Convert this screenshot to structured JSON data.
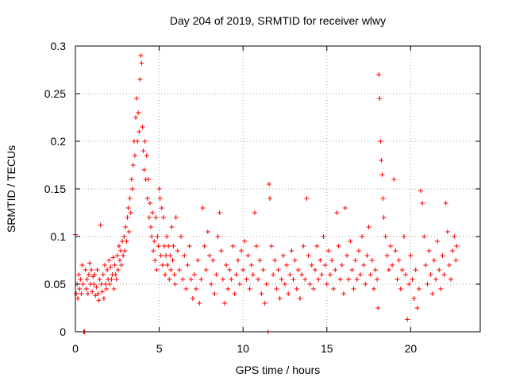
{
  "chart_data": {
    "type": "scatter",
    "title": "Day 204 of 2019, SRMTID for receiver wlwy",
    "xlabel": "GPS time / hours",
    "ylabel": "SRMTID / TECUs",
    "xlim": [
      0,
      24.15
    ],
    "ylim": [
      0,
      0.3
    ],
    "xticks": [
      0,
      5,
      10,
      15,
      20
    ],
    "xtick_labels": [
      "0",
      "5",
      "10",
      "15",
      "20"
    ],
    "yticks": [
      0,
      0.05,
      0.1,
      0.15,
      0.2,
      0.25,
      0.3
    ],
    "ytick_labels": [
      "0",
      "0.05",
      "0.1",
      "0.15",
      "0.2",
      "0.25",
      "0.3"
    ],
    "grid": true,
    "marker": "+",
    "color": "#ff0000",
    "series": [
      {
        "name": "SRMTID",
        "points": [
          [
            0.0,
            0.102
          ],
          [
            0.05,
            0.04
          ],
          [
            0.1,
            0.05
          ],
          [
            0.15,
            0.035
          ],
          [
            0.2,
            0.06
          ],
          [
            0.25,
            0.045
          ],
          [
            0.3,
            0.055
          ],
          [
            0.35,
            0.04
          ],
          [
            0.4,
            0.07
          ],
          [
            0.45,
            0.05
          ],
          [
            0.5,
            0.0
          ],
          [
            0.55,
            0.0
          ],
          [
            0.6,
            0.065
          ],
          [
            0.65,
            0.045
          ],
          [
            0.7,
            0.055
          ],
          [
            0.75,
            0.04
          ],
          [
            0.8,
            0.06
          ],
          [
            0.85,
            0.072
          ],
          [
            0.9,
            0.05
          ],
          [
            0.95,
            0.065
          ],
          [
            1.0,
            0.042
          ],
          [
            1.05,
            0.058
          ],
          [
            1.1,
            0.05
          ],
          [
            1.15,
            0.06
          ],
          [
            1.2,
            0.038
          ],
          [
            1.25,
            0.047
          ],
          [
            1.3,
            0.065
          ],
          [
            1.35,
            0.04
          ],
          [
            1.4,
            0.033
          ],
          [
            1.45,
            0.055
          ],
          [
            1.5,
            0.112
          ],
          [
            1.55,
            0.05
          ],
          [
            1.6,
            0.042
          ],
          [
            1.65,
            0.06
          ],
          [
            1.7,
            0.035
          ],
          [
            1.75,
            0.07
          ],
          [
            1.8,
            0.05
          ],
          [
            1.85,
            0.045
          ],
          [
            1.9,
            0.065
          ],
          [
            1.95,
            0.055
          ],
          [
            2.0,
            0.075
          ],
          [
            2.05,
            0.05
          ],
          [
            2.1,
            0.068
          ],
          [
            2.15,
            0.055
          ],
          [
            2.2,
            0.06
          ],
          [
            2.25,
            0.078
          ],
          [
            2.3,
            0.045
          ],
          [
            2.35,
            0.07
          ],
          [
            2.4,
            0.06
          ],
          [
            2.45,
            0.055
          ],
          [
            2.5,
            0.08
          ],
          [
            2.55,
            0.065
          ],
          [
            2.6,
            0.09
          ],
          [
            2.65,
            0.075
          ],
          [
            2.7,
            0.085
          ],
          [
            2.75,
            0.07
          ],
          [
            2.8,
            0.095
          ],
          [
            2.85,
            0.08
          ],
          [
            2.9,
            0.1
          ],
          [
            2.95,
            0.085
          ],
          [
            3.0,
            0.11
          ],
          [
            3.05,
            0.095
          ],
          [
            3.1,
            0.12
          ],
          [
            3.15,
            0.13
          ],
          [
            3.2,
            0.105
          ],
          [
            3.25,
            0.14
          ],
          [
            3.3,
            0.125
          ],
          [
            3.35,
            0.16
          ],
          [
            3.4,
            0.15
          ],
          [
            3.45,
            0.175
          ],
          [
            3.5,
            0.2
          ],
          [
            3.55,
            0.185
          ],
          [
            3.6,
            0.225
          ],
          [
            3.65,
            0.245
          ],
          [
            3.7,
            0.2
          ],
          [
            3.75,
            0.23
          ],
          [
            3.8,
            0.21
          ],
          [
            3.85,
            0.265
          ],
          [
            3.9,
            0.29
          ],
          [
            3.95,
            0.282
          ],
          [
            4.0,
            0.215
          ],
          [
            4.05,
            0.19
          ],
          [
            4.1,
            0.17
          ],
          [
            4.15,
            0.2
          ],
          [
            4.2,
            0.16
          ],
          [
            4.25,
            0.185
          ],
          [
            4.3,
            0.14
          ],
          [
            4.35,
            0.16
          ],
          [
            4.4,
            0.12
          ],
          [
            4.45,
            0.135
          ],
          [
            4.5,
            0.11
          ],
          [
            4.55,
            0.1
          ],
          [
            4.6,
            0.125
          ],
          [
            4.65,
            0.085
          ],
          [
            4.7,
            0.095
          ],
          [
            4.75,
            0.075
          ],
          [
            4.8,
            0.12
          ],
          [
            4.85,
            0.065
          ],
          [
            4.9,
            0.1
          ],
          [
            4.95,
            0.09
          ],
          [
            5.0,
            0.15
          ],
          [
            5.05,
            0.14
          ],
          [
            5.1,
            0.08
          ],
          [
            5.15,
            0.13
          ],
          [
            5.2,
            0.07
          ],
          [
            5.25,
            0.12
          ],
          [
            5.3,
            0.09
          ],
          [
            5.35,
            0.06
          ],
          [
            5.4,
            0.08
          ],
          [
            5.45,
            0.1
          ],
          [
            5.5,
            0.07
          ],
          [
            5.55,
            0.09
          ],
          [
            5.6,
            0.055
          ],
          [
            5.65,
            0.08
          ],
          [
            5.7,
            0.065
          ],
          [
            5.75,
            0.11
          ],
          [
            5.8,
            0.075
          ],
          [
            5.85,
            0.09
          ],
          [
            5.9,
            0.06
          ],
          [
            5.95,
            0.05
          ],
          [
            6.0,
            0.12
          ],
          [
            6.1,
            0.085
          ],
          [
            6.2,
            0.065
          ],
          [
            6.3,
            0.1
          ],
          [
            6.4,
            0.055
          ],
          [
            6.5,
            0.08
          ],
          [
            6.6,
            0.045
          ],
          [
            6.7,
            0.07
          ],
          [
            6.8,
            0.09
          ],
          [
            6.9,
            0.055
          ],
          [
            7.0,
            0.035
          ],
          [
            7.1,
            0.06
          ],
          [
            7.2,
            0.045
          ],
          [
            7.3,
            0.075
          ],
          [
            7.4,
            0.03
          ],
          [
            7.5,
            0.055
          ],
          [
            7.6,
            0.13
          ],
          [
            7.7,
            0.09
          ],
          [
            7.8,
            0.065
          ],
          [
            7.9,
            0.105
          ],
          [
            8.0,
            0.08
          ],
          [
            8.1,
            0.05
          ],
          [
            8.2,
            0.075
          ],
          [
            8.3,
            0.04
          ],
          [
            8.4,
            0.06
          ],
          [
            8.5,
            0.1
          ],
          [
            8.6,
            0.125
          ],
          [
            8.7,
            0.085
          ],
          [
            8.8,
            0.055
          ],
          [
            8.9,
            0.03
          ],
          [
            9.0,
            0.07
          ],
          [
            9.1,
            0.045
          ],
          [
            9.2,
            0.065
          ],
          [
            9.3,
            0.055
          ],
          [
            9.4,
            0.09
          ],
          [
            9.5,
            0.04
          ],
          [
            9.6,
            0.06
          ],
          [
            9.7,
            0.075
          ],
          [
            9.8,
            0.05
          ],
          [
            9.9,
            0.085
          ],
          [
            10.0,
            0.065
          ],
          [
            10.1,
            0.095
          ],
          [
            10.2,
            0.055
          ],
          [
            10.3,
            0.08
          ],
          [
            10.4,
            0.045
          ],
          [
            10.5,
            0.07
          ],
          [
            10.6,
            0.06
          ],
          [
            10.7,
            0.125
          ],
          [
            10.8,
            0.09
          ],
          [
            10.9,
            0.055
          ],
          [
            11.0,
            0.075
          ],
          [
            11.1,
            0.04
          ],
          [
            11.2,
            0.065
          ],
          [
            11.3,
            0.03
          ],
          [
            11.4,
            0.05
          ],
          [
            11.5,
            0.0
          ],
          [
            11.55,
            0.155
          ],
          [
            11.6,
            0.14
          ],
          [
            11.7,
            0.09
          ],
          [
            11.8,
            0.06
          ],
          [
            11.9,
            0.075
          ],
          [
            12.0,
            0.045
          ],
          [
            12.1,
            0.065
          ],
          [
            12.2,
            0.035
          ],
          [
            12.3,
            0.055
          ],
          [
            12.4,
            0.08
          ],
          [
            12.5,
            0.05
          ],
          [
            12.6,
            0.07
          ],
          [
            12.7,
            0.04
          ],
          [
            12.8,
            0.06
          ],
          [
            12.9,
            0.085
          ],
          [
            13.0,
            0.055
          ],
          [
            13.1,
            0.075
          ],
          [
            13.2,
            0.045
          ],
          [
            13.3,
            0.065
          ],
          [
            13.4,
            0.035
          ],
          [
            13.5,
            0.06
          ],
          [
            13.6,
            0.09
          ],
          [
            13.7,
            0.055
          ],
          [
            13.8,
            0.14
          ],
          [
            13.9,
            0.08
          ],
          [
            14.0,
            0.05
          ],
          [
            14.1,
            0.07
          ],
          [
            14.2,
            0.045
          ],
          [
            14.3,
            0.065
          ],
          [
            14.4,
            0.09
          ],
          [
            14.5,
            0.055
          ],
          [
            14.6,
            0.075
          ],
          [
            14.7,
            0.06
          ],
          [
            14.8,
            0.1
          ],
          [
            14.9,
            0.07
          ],
          [
            15.0,
            0.05
          ],
          [
            15.1,
            0.085
          ],
          [
            15.2,
            0.06
          ],
          [
            15.3,
            0.075
          ],
          [
            15.4,
            0.045
          ],
          [
            15.5,
            0.065
          ],
          [
            15.6,
            0.125
          ],
          [
            15.7,
            0.09
          ],
          [
            15.8,
            0.055
          ],
          [
            15.9,
            0.07
          ],
          [
            16.0,
            0.04
          ],
          [
            16.1,
            0.13
          ],
          [
            16.2,
            0.08
          ],
          [
            16.3,
            0.055
          ],
          [
            16.4,
            0.095
          ],
          [
            16.5,
            0.065
          ],
          [
            16.6,
            0.045
          ],
          [
            16.7,
            0.075
          ],
          [
            16.8,
            0.055
          ],
          [
            16.9,
            0.085
          ],
          [
            17.0,
            0.06
          ],
          [
            17.1,
            0.1
          ],
          [
            17.2,
            0.07
          ],
          [
            17.3,
            0.05
          ],
          [
            17.4,
            0.08
          ],
          [
            17.5,
            0.11
          ],
          [
            17.6,
            0.06
          ],
          [
            17.7,
            0.075
          ],
          [
            17.8,
            0.045
          ],
          [
            17.9,
            0.065
          ],
          [
            18.0,
            0.055
          ],
          [
            18.05,
            0.025
          ],
          [
            18.1,
            0.27
          ],
          [
            18.15,
            0.245
          ],
          [
            18.2,
            0.2
          ],
          [
            18.25,
            0.18
          ],
          [
            18.3,
            0.165
          ],
          [
            18.35,
            0.14
          ],
          [
            18.4,
            0.12
          ],
          [
            18.5,
            0.1
          ],
          [
            18.6,
            0.08
          ],
          [
            18.7,
            0.065
          ],
          [
            18.8,
            0.09
          ],
          [
            18.9,
            0.07
          ],
          [
            19.0,
            0.16
          ],
          [
            19.1,
            0.085
          ],
          [
            19.2,
            0.055
          ],
          [
            19.3,
            0.075
          ],
          [
            19.4,
            0.045
          ],
          [
            19.5,
            0.065
          ],
          [
            19.6,
            0.1
          ],
          [
            19.7,
            0.06
          ],
          [
            19.8,
            0.013
          ],
          [
            19.9,
            0.05
          ],
          [
            20.0,
            0.08
          ],
          [
            20.1,
            0.055
          ],
          [
            20.2,
            0.035
          ],
          [
            20.3,
            0.065
          ],
          [
            20.4,
            0.025
          ],
          [
            20.5,
            0.045
          ],
          [
            20.6,
            0.148
          ],
          [
            20.7,
            0.135
          ],
          [
            20.8,
            0.1
          ],
          [
            20.9,
            0.07
          ],
          [
            21.0,
            0.05
          ],
          [
            21.1,
            0.085
          ],
          [
            21.2,
            0.06
          ],
          [
            21.3,
            0.04
          ],
          [
            21.4,
            0.075
          ],
          [
            21.5,
            0.055
          ],
          [
            21.6,
            0.095
          ],
          [
            21.7,
            0.065
          ],
          [
            21.8,
            0.045
          ],
          [
            21.9,
            0.08
          ],
          [
            22.0,
            0.06
          ],
          [
            22.1,
            0.135
          ],
          [
            22.2,
            0.105
          ],
          [
            22.3,
            0.07
          ],
          [
            22.4,
            0.055
          ],
          [
            22.5,
            0.085
          ],
          [
            22.6,
            0.1
          ],
          [
            22.7,
            0.075
          ],
          [
            22.75,
            0.09
          ]
        ]
      }
    ]
  }
}
